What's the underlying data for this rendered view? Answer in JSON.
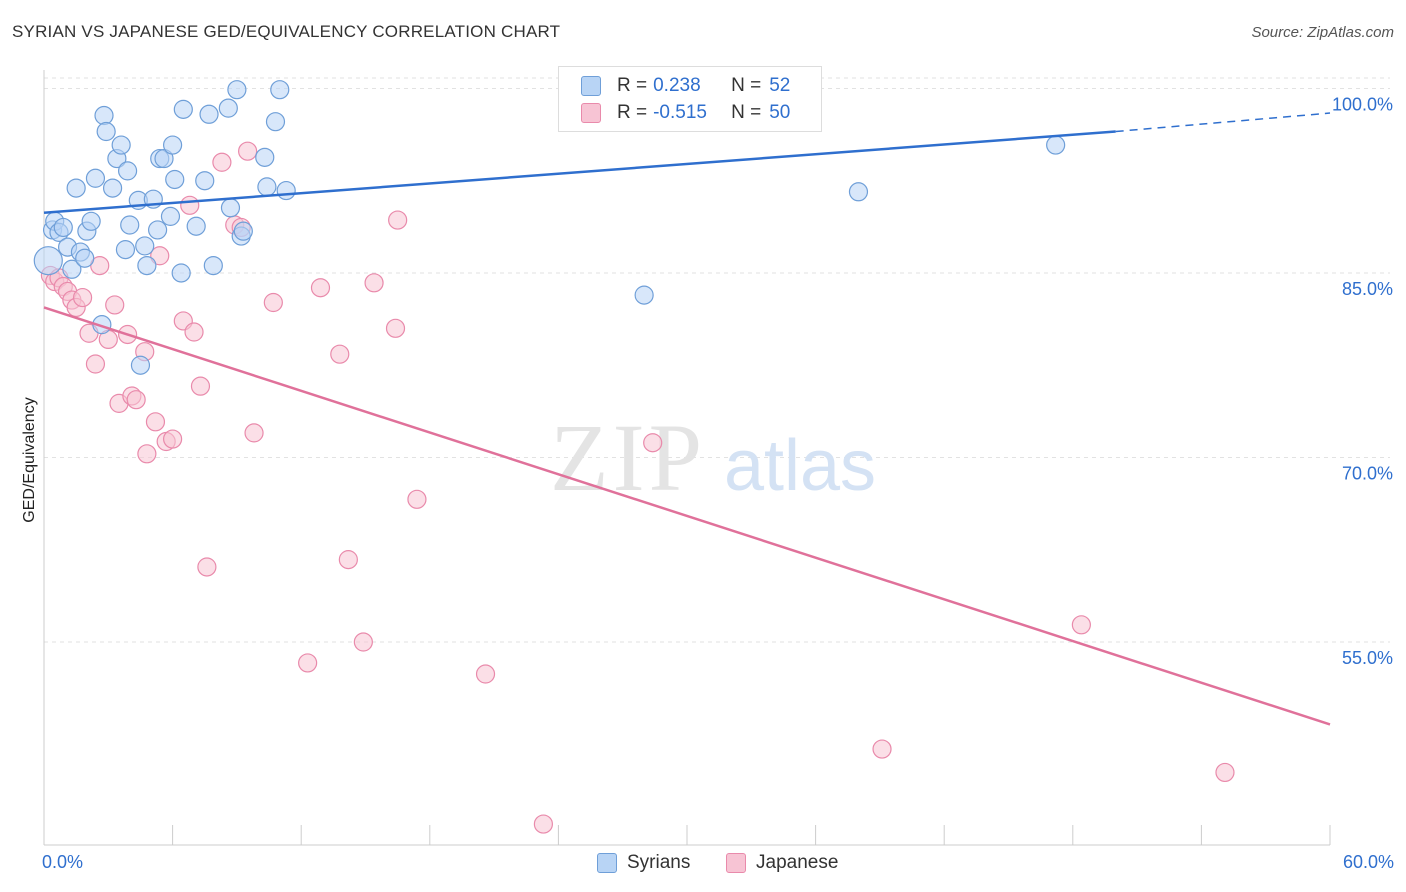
{
  "title": "SYRIAN VS JAPANESE GED/EQUIVALENCY CORRELATION CHART",
  "source": "Source: ZipAtlas.com",
  "watermark": {
    "zip": "ZIP",
    "atlas": "atlas"
  },
  "colors": {
    "syrians_fill": "#b8d4f5",
    "syrians_stroke": "#6f9fd8",
    "syrians_line": "#2f6fce",
    "japanese_fill": "#f7c4d4",
    "japanese_stroke": "#e98aab",
    "japanese_line": "#e0719a",
    "grid": "#e2e2e2",
    "tick_label": "#2f6fce"
  },
  "legend": {
    "r_label": "R =",
    "n_label": "N =",
    "rows": [
      {
        "series": "Syrians",
        "r": "0.238",
        "n": "52"
      },
      {
        "series": "Japanese",
        "r": "-0.515",
        "n": "50"
      }
    ]
  },
  "chart_data": {
    "type": "scatter",
    "title": "SYRIAN VS JAPANESE GED/EQUIVALENCY CORRELATION CHART",
    "xlabel": "",
    "ylabel": "GED/Equivalency",
    "xlim": [
      0,
      60
    ],
    "ylim": [
      38.5,
      101.5
    ],
    "x_tick_labels": [
      "0.0%",
      "60.0%"
    ],
    "y_ticks": [
      55,
      70,
      85,
      100
    ],
    "y_tick_labels": [
      "55.0%",
      "70.0%",
      "85.0%",
      "100.0%"
    ],
    "grid": true,
    "legend_position": "top-center",
    "series": [
      {
        "name": "Syrians",
        "r": 0.238,
        "n": 52,
        "trend": {
          "x": [
            0,
            50
          ],
          "y": [
            89.9,
            96.5
          ],
          "dashed_to": [
            60,
            98.0
          ]
        },
        "points": [
          [
            0.2,
            86.0
          ],
          [
            0.4,
            88.5
          ],
          [
            0.5,
            89.2
          ],
          [
            0.7,
            88.3
          ],
          [
            0.9,
            88.7
          ],
          [
            1.1,
            87.1
          ],
          [
            1.3,
            85.3
          ],
          [
            1.5,
            91.9
          ],
          [
            1.7,
            86.7
          ],
          [
            1.9,
            86.2
          ],
          [
            2.0,
            88.4
          ],
          [
            2.2,
            89.2
          ],
          [
            2.4,
            92.7
          ],
          [
            2.7,
            80.8
          ],
          [
            2.8,
            97.8
          ],
          [
            2.9,
            96.5
          ],
          [
            3.2,
            91.9
          ],
          [
            3.4,
            94.3
          ],
          [
            3.6,
            95.4
          ],
          [
            3.8,
            86.9
          ],
          [
            3.9,
            93.3
          ],
          [
            4.0,
            88.9
          ],
          [
            4.4,
            90.9
          ],
          [
            4.7,
            87.2
          ],
          [
            4.8,
            85.6
          ],
          [
            5.1,
            91.0
          ],
          [
            5.3,
            88.5
          ],
          [
            5.4,
            94.3
          ],
          [
            5.6,
            94.3
          ],
          [
            5.9,
            89.6
          ],
          [
            6.0,
            95.4
          ],
          [
            6.1,
            92.6
          ],
          [
            6.4,
            85.0
          ],
          [
            6.5,
            98.3
          ],
          [
            7.1,
            88.8
          ],
          [
            7.5,
            92.5
          ],
          [
            7.7,
            97.9
          ],
          [
            7.9,
            85.6
          ],
          [
            8.6,
            98.4
          ],
          [
            8.7,
            90.3
          ],
          [
            9.0,
            99.9
          ],
          [
            9.2,
            88.0
          ],
          [
            9.3,
            88.4
          ],
          [
            10.3,
            94.4
          ],
          [
            10.4,
            92.0
          ],
          [
            10.8,
            97.3
          ],
          [
            11.0,
            99.9
          ],
          [
            11.3,
            91.7
          ],
          [
            4.5,
            77.5
          ],
          [
            28.0,
            83.2
          ],
          [
            38.0,
            91.6
          ],
          [
            47.2,
            95.4
          ]
        ]
      },
      {
        "name": "Japanese",
        "r": -0.515,
        "n": 50,
        "trend": {
          "x": [
            0,
            60
          ],
          "y": [
            82.2,
            48.3
          ]
        },
        "points": [
          [
            0.3,
            84.8
          ],
          [
            0.5,
            84.3
          ],
          [
            0.7,
            84.6
          ],
          [
            0.9,
            83.9
          ],
          [
            1.1,
            83.5
          ],
          [
            1.3,
            82.8
          ],
          [
            1.5,
            82.2
          ],
          [
            1.8,
            83.0
          ],
          [
            2.1,
            80.1
          ],
          [
            2.4,
            77.6
          ],
          [
            2.6,
            85.6
          ],
          [
            3.0,
            79.6
          ],
          [
            3.3,
            82.4
          ],
          [
            3.5,
            74.4
          ],
          [
            3.9,
            80.0
          ],
          [
            4.1,
            75.0
          ],
          [
            4.3,
            74.7
          ],
          [
            4.7,
            78.6
          ],
          [
            4.8,
            70.3
          ],
          [
            5.2,
            72.9
          ],
          [
            5.4,
            86.4
          ],
          [
            5.7,
            71.3
          ],
          [
            6.0,
            71.5
          ],
          [
            6.5,
            81.1
          ],
          [
            6.8,
            90.5
          ],
          [
            7.0,
            80.2
          ],
          [
            7.3,
            75.8
          ],
          [
            7.6,
            61.1
          ],
          [
            8.3,
            94.0
          ],
          [
            8.9,
            88.9
          ],
          [
            9.2,
            88.7
          ],
          [
            9.5,
            94.9
          ],
          [
            9.8,
            72.0
          ],
          [
            10.7,
            82.6
          ],
          [
            12.3,
            53.3
          ],
          [
            12.9,
            83.8
          ],
          [
            13.8,
            78.4
          ],
          [
            14.2,
            61.7
          ],
          [
            14.9,
            55.0
          ],
          [
            15.4,
            84.2
          ],
          [
            16.4,
            80.5
          ],
          [
            16.5,
            89.3
          ],
          [
            17.4,
            66.6
          ],
          [
            20.6,
            52.4
          ],
          [
            23.3,
            40.2
          ],
          [
            28.4,
            71.2
          ],
          [
            32.8,
            100.0
          ],
          [
            48.4,
            56.4
          ],
          [
            39.1,
            46.3
          ],
          [
            55.1,
            44.4
          ]
        ]
      }
    ]
  },
  "bottom_legend": [
    "Syrians",
    "Japanese"
  ]
}
